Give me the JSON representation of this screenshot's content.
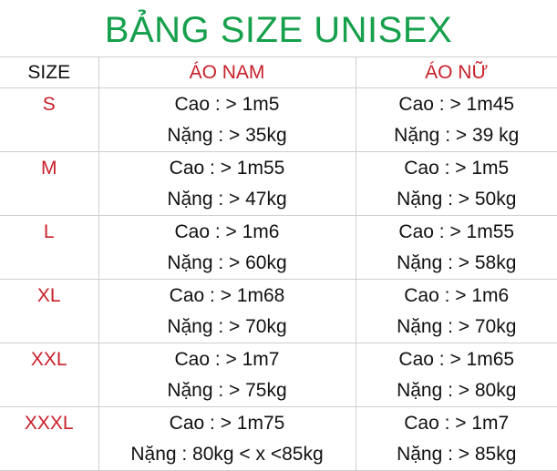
{
  "title": "BẢNG SIZE UNISEX",
  "colors": {
    "title": "#16a04c",
    "accent": "#c8202a"
  },
  "headers": {
    "size": "SIZE",
    "men": "ÁO NAM",
    "women": "ÁO NỮ"
  },
  "rows": [
    {
      "size": "S",
      "men": {
        "height": "Cao : > 1m5",
        "weight": "Nặng : > 35kg"
      },
      "women": {
        "height": "Cao : > 1m45",
        "weight": "Nặng : > 39 kg"
      }
    },
    {
      "size": "M",
      "men": {
        "height": "Cao : > 1m55",
        "weight": "Nặng : > 47kg"
      },
      "women": {
        "height": "Cao : > 1m5",
        "weight": "Nặng : > 50kg"
      }
    },
    {
      "size": "L",
      "men": {
        "height": "Cao : > 1m6",
        "weight": "Nặng : > 60kg"
      },
      "women": {
        "height": "Cao : > 1m55",
        "weight": "Nặng : > 58kg"
      }
    },
    {
      "size": "XL",
      "men": {
        "height": "Cao : > 1m68",
        "weight": "Nặng : > 70kg"
      },
      "women": {
        "height": "Cao : > 1m6",
        "weight": "Nặng : > 70kg"
      }
    },
    {
      "size": "XXL",
      "men": {
        "height": "Cao : > 1m7",
        "weight": "Nặng : > 75kg"
      },
      "women": {
        "height": "Cao : > 1m65",
        "weight": "Nặng : > 80kg"
      }
    },
    {
      "size": "XXXL",
      "men": {
        "height": "Cao : > 1m75",
        "weight": "Nặng : 80kg < x <85kg"
      },
      "women": {
        "height": "Cao : > 1m7",
        "weight": "Nặng : > 85kg"
      }
    }
  ]
}
